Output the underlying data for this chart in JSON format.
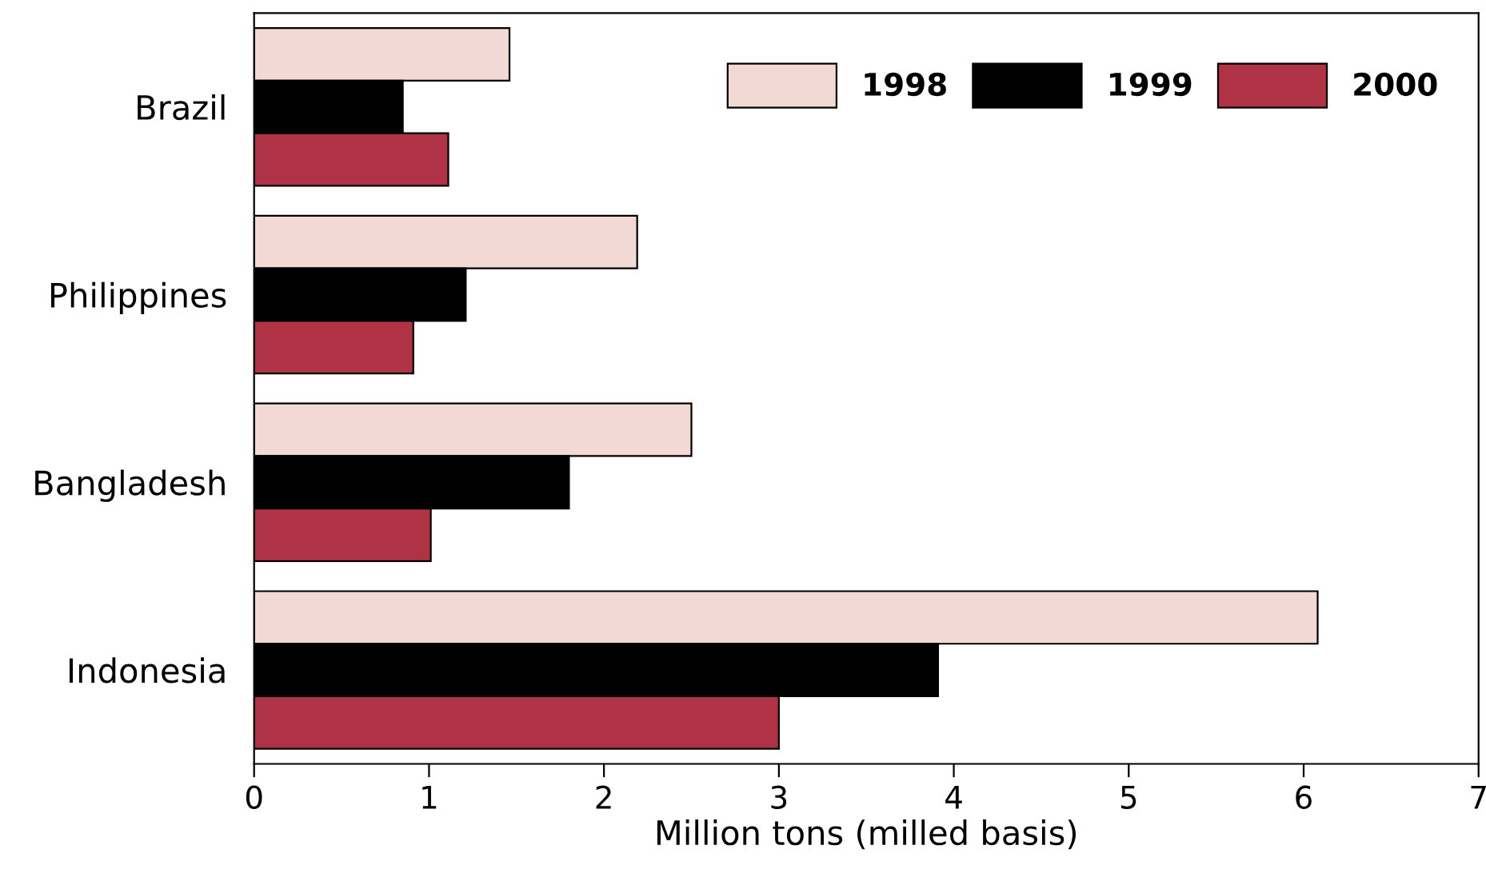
{
  "chart_data": {
    "type": "bar",
    "orientation": "horizontal",
    "xlabel": "Million tons (milled basis)",
    "categories": [
      "Brazil",
      "Philippines",
      "Bangladesh",
      "Indonesia"
    ],
    "series": [
      {
        "name": "1998",
        "color": "#f2d9d3",
        "values": [
          1.46,
          2.19,
          2.5,
          6.08
        ]
      },
      {
        "name": "1999",
        "color": "#000000",
        "values": [
          0.85,
          1.21,
          1.8,
          3.91
        ]
      },
      {
        "name": "2000",
        "color": "#b03245",
        "values": [
          1.11,
          0.91,
          1.01,
          3.0
        ]
      }
    ],
    "xlim": [
      0,
      7
    ],
    "xticks": [
      0,
      1,
      2,
      3,
      4,
      5,
      6,
      7
    ],
    "grid": false,
    "legend": "top right"
  }
}
